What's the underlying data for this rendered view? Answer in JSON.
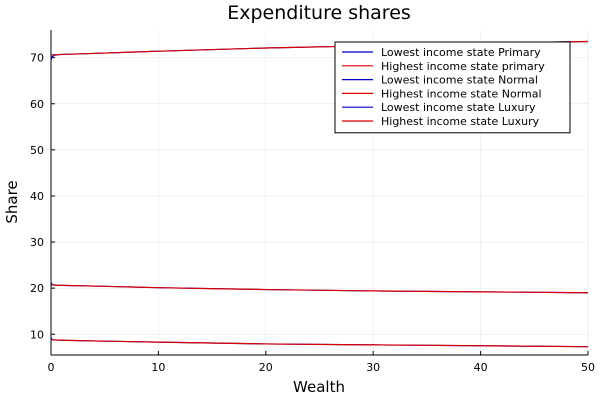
{
  "chart_data": {
    "type": "line",
    "title": "Expenditure shares",
    "xlabel": "Wealth",
    "ylabel": "Share",
    "xlim": [
      0,
      50
    ],
    "ylim": [
      5.5,
      76
    ],
    "xticks": [
      0,
      10,
      20,
      30,
      40,
      50
    ],
    "yticks": [
      10,
      20,
      30,
      40,
      50,
      60,
      70
    ],
    "grid": true,
    "legend_position": "top-right",
    "series": [
      {
        "name": "Lowest income state Primary",
        "color": "#0000cc",
        "x": [
          0,
          0.05,
          0.1,
          0.3,
          0.5,
          1,
          5,
          10,
          20,
          30,
          40,
          50
        ],
        "y": [
          69.4,
          69.9,
          70.2,
          70.5,
          70.6,
          70.7,
          71.0,
          71.4,
          72.1,
          72.6,
          73.1,
          73.5
        ]
      },
      {
        "name": "Highest income state primary",
        "color": "#dd0000",
        "x": [
          0,
          1,
          5,
          10,
          20,
          30,
          40,
          50
        ],
        "y": [
          70.6,
          70.7,
          71.0,
          71.4,
          72.1,
          72.6,
          73.1,
          73.5
        ]
      },
      {
        "name": "Lowest income state Normal",
        "color": "#0000cc",
        "x": [
          0,
          0.05,
          0.1,
          0.3,
          0.5,
          1,
          5,
          10,
          20,
          30,
          40,
          50
        ],
        "y": [
          21.3,
          21.0,
          20.8,
          20.7,
          20.6,
          20.6,
          20.4,
          20.1,
          19.7,
          19.4,
          19.2,
          19.0
        ]
      },
      {
        "name": "Highest income state Normal",
        "color": "#dd0000",
        "x": [
          0,
          1,
          5,
          10,
          20,
          30,
          40,
          50
        ],
        "y": [
          20.7,
          20.6,
          20.4,
          20.1,
          19.7,
          19.4,
          19.2,
          19.0
        ]
      },
      {
        "name": "Lowest income state Luxury",
        "color": "#0000cc",
        "x": [
          0,
          0.05,
          0.1,
          0.3,
          0.5,
          1,
          5,
          10,
          20,
          30,
          40,
          50
        ],
        "y": [
          9.4,
          9.0,
          8.9,
          8.8,
          8.75,
          8.7,
          8.5,
          8.3,
          7.9,
          7.7,
          7.5,
          7.3
        ]
      },
      {
        "name": "Highest income state Luxury",
        "color": "#dd0000",
        "x": [
          0,
          1,
          5,
          10,
          20,
          30,
          40,
          50
        ],
        "y": [
          8.8,
          8.7,
          8.5,
          8.3,
          7.9,
          7.7,
          7.5,
          7.3
        ]
      }
    ]
  }
}
